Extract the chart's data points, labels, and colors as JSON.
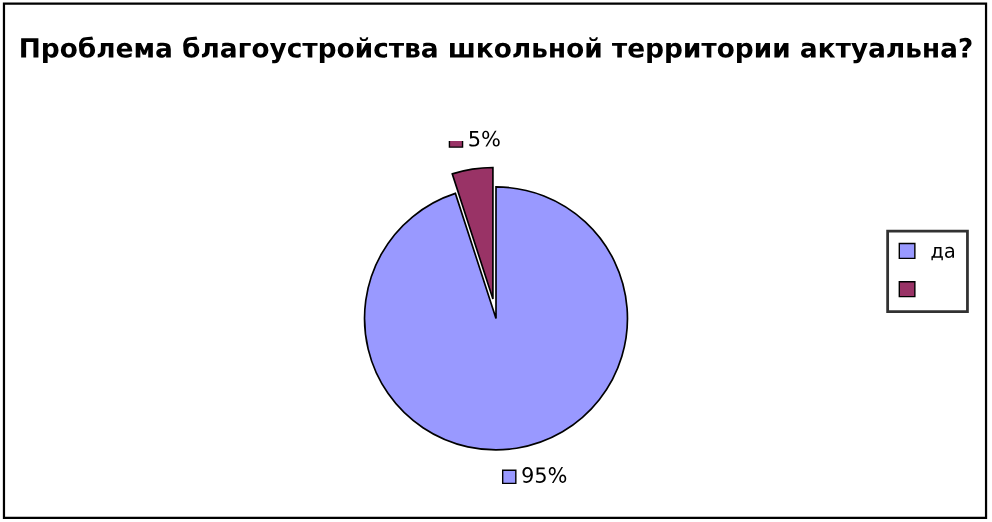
{
  "chart_data": {
    "type": "pie",
    "title": "Проблема благоустройства школьной территории актуальна?",
    "categories": [
      "да",
      null
    ],
    "values": [
      95,
      5
    ],
    "colors": [
      "#9999ff",
      "#993366"
    ],
    "value_labels": [
      "95%",
      "5%"
    ],
    "legend": "right"
  }
}
